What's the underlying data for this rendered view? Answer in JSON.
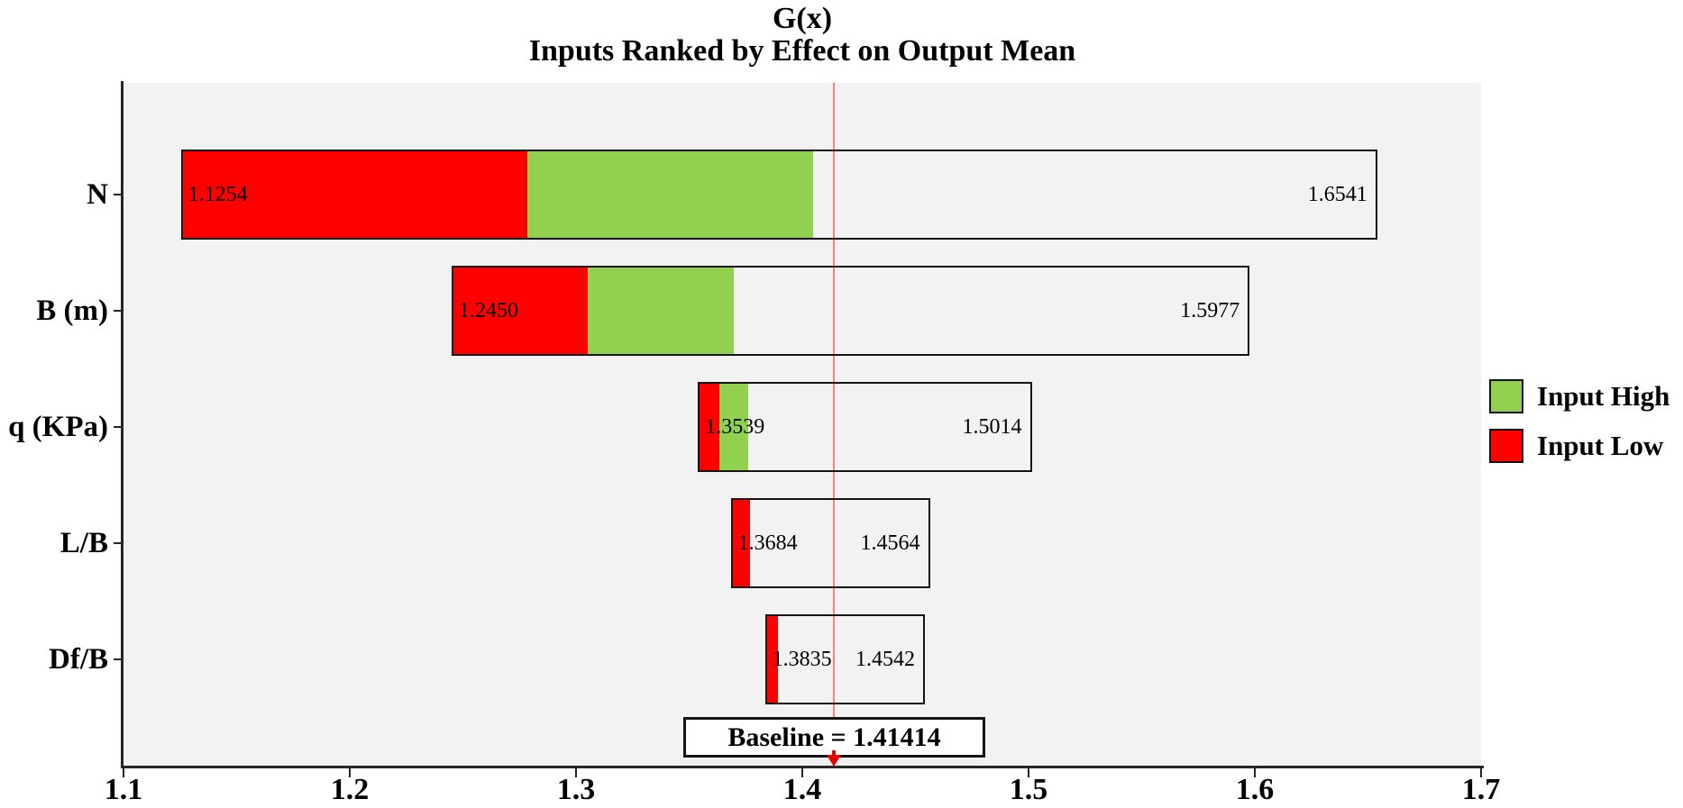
{
  "chart_data": {
    "type": "bar",
    "variant": "tornado",
    "orientation": "horizontal",
    "title": "G(x)",
    "subtitle": "Inputs Ranked by Effect on Output Mean",
    "xlim": [
      1.1,
      1.7
    ],
    "x_ticks": [
      {
        "value": 1.1,
        "label": "1.1"
      },
      {
        "value": 1.2,
        "label": "1.2"
      },
      {
        "value": 1.3,
        "label": "1.3"
      },
      {
        "value": 1.4,
        "label": "1.4"
      },
      {
        "value": 1.5,
        "label": "1.5"
      },
      {
        "value": 1.6,
        "label": "1.6"
      },
      {
        "value": 1.7,
        "label": "1.7"
      }
    ],
    "grid": false,
    "plot_background": "#f2f2f2",
    "colors": {
      "input_high": "#92d050",
      "input_low": "#ff0000",
      "bar_border": "#141414",
      "baseline_line": "#ff8080",
      "baseline_marker": "#e60000"
    },
    "baseline": {
      "value": 1.41414,
      "label": "Baseline = 1.41414"
    },
    "categories": [
      "N",
      "B (m)",
      "q (KPa)",
      "L/B",
      "Df/B"
    ],
    "rows": [
      {
        "category": "N",
        "low_value": 1.1254,
        "high_value": 1.6541,
        "low_label": "1.1254",
        "high_label": "1.6541",
        "segments": [
          {
            "from": 1.1254,
            "to": 1.41414,
            "type": "input_low"
          },
          {
            "from": 1.41414,
            "to": 1.6541,
            "type": "input_high"
          }
        ]
      },
      {
        "category": "B (m)",
        "low_value": 1.245,
        "high_value": 1.5977,
        "low_label": "1.2450",
        "high_label": "1.5977",
        "segments": [
          {
            "from": 1.245,
            "to": 1.41414,
            "type": "input_low"
          },
          {
            "from": 1.41414,
            "to": 1.5977,
            "type": "input_high"
          }
        ]
      },
      {
        "category": "q (KPa)",
        "low_value": 1.3539,
        "high_value": 1.5014,
        "low_label": "1.3539",
        "high_label": "1.5014",
        "segments": [
          {
            "from": 1.3539,
            "to": 1.41414,
            "type": "input_low"
          },
          {
            "from": 1.41414,
            "to": 1.5014,
            "type": "input_high"
          }
        ]
      },
      {
        "category": "L/B",
        "low_value": 1.3684,
        "high_value": 1.4564,
        "low_label": "1.3684",
        "high_label": "1.4564",
        "segments": [
          {
            "from": 1.3684,
            "to": 1.4564,
            "type": "input_low"
          }
        ]
      },
      {
        "category": "Df/B",
        "low_value": 1.3835,
        "high_value": 1.4542,
        "low_label": "1.3835",
        "high_label": "1.4542",
        "segments": [
          {
            "from": 1.3835,
            "to": 1.4542,
            "type": "input_low"
          }
        ]
      }
    ],
    "legend": {
      "position": "right",
      "items": [
        {
          "label": "Input High",
          "type": "input_high"
        },
        {
          "label": "Input Low",
          "type": "input_low"
        }
      ]
    }
  }
}
